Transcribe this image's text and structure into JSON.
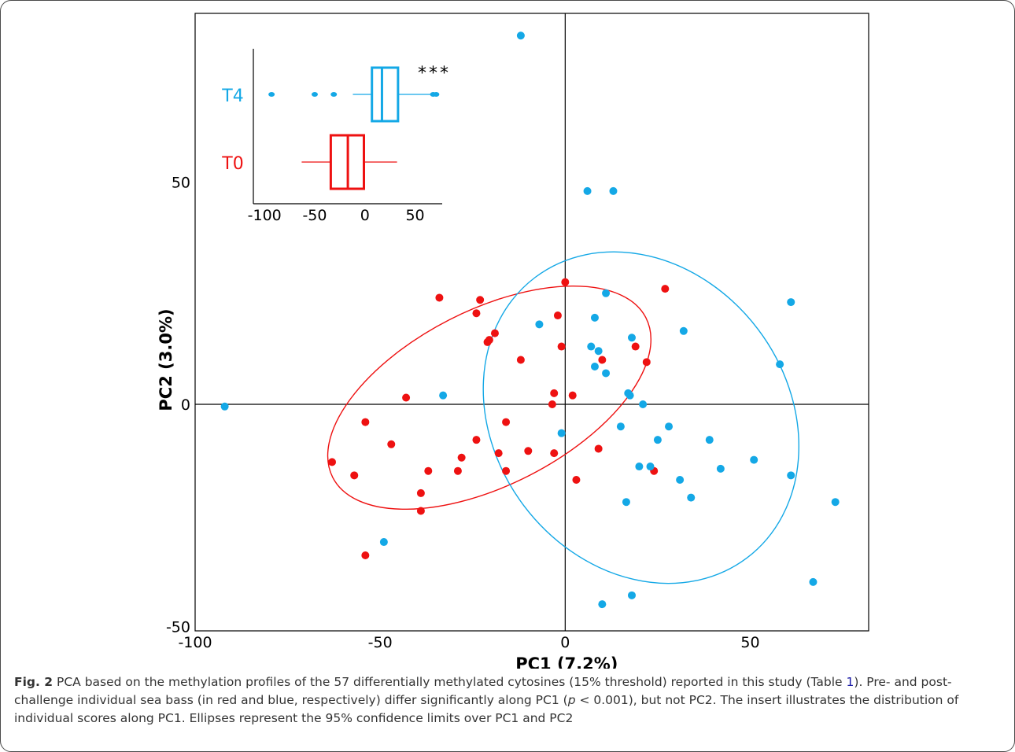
{
  "chart_data": [
    {
      "type": "scatter",
      "xlabel": "PC1 (7.2%)",
      "ylabel": "PC2 (3.0%)",
      "xlim": [
        -100,
        82
      ],
      "ylim": [
        -51,
        88
      ],
      "xticks": [
        "-100",
        "-50",
        "0",
        "50"
      ],
      "xtick_values": [
        -100,
        -50,
        0,
        50
      ],
      "yticks": [
        "50",
        "0",
        "-50"
      ],
      "ytick_values": [
        50,
        0,
        -50
      ],
      "series": [
        {
          "name": "T0",
          "color": "#ee1111",
          "points": [
            [
              -63,
              -13
            ],
            [
              -57,
              -16
            ],
            [
              -54,
              -4
            ],
            [
              -54,
              -34
            ],
            [
              -47,
              -9
            ],
            [
              -43,
              1.5
            ],
            [
              -39,
              -20
            ],
            [
              -39,
              -24
            ],
            [
              -37,
              -15
            ],
            [
              -34,
              24
            ],
            [
              -29,
              -15
            ],
            [
              -28,
              -12
            ],
            [
              -24,
              -8
            ],
            [
              -24,
              20.5
            ],
            [
              -23,
              23.5
            ],
            [
              -21,
              14
            ],
            [
              -20.5,
              14.5
            ],
            [
              -19,
              16
            ],
            [
              -18,
              -11
            ],
            [
              -16,
              -15
            ],
            [
              -16,
              -4
            ],
            [
              -12,
              10
            ],
            [
              -10,
              -10.5
            ],
            [
              -3,
              -11
            ],
            [
              -3,
              2.5
            ],
            [
              -3.5,
              0
            ],
            [
              -2,
              20
            ],
            [
              -1,
              13
            ],
            [
              0,
              27.5
            ],
            [
              2,
              2
            ],
            [
              3,
              -17
            ],
            [
              9,
              -10
            ],
            [
              10,
              10
            ],
            [
              19,
              13
            ],
            [
              22,
              9.5
            ],
            [
              24,
              -15
            ],
            [
              27,
              26
            ]
          ]
        },
        {
          "name": "T4",
          "color": "#14a8e6",
          "points": [
            [
              -92,
              -0.5
            ],
            [
              -49,
              -31
            ],
            [
              -33,
              2
            ],
            [
              -12,
              83
            ],
            [
              -7,
              18
            ],
            [
              -1,
              -6.5
            ],
            [
              6,
              48
            ],
            [
              7,
              13
            ],
            [
              8,
              19.5
            ],
            [
              8,
              8.5
            ],
            [
              9,
              12
            ],
            [
              10,
              -45
            ],
            [
              11,
              7
            ],
            [
              11,
              25
            ],
            [
              13,
              48
            ],
            [
              15,
              -5
            ],
            [
              16.5,
              -22
            ],
            [
              17,
              2.5
            ],
            [
              17.5,
              2
            ],
            [
              18,
              15
            ],
            [
              18,
              -43
            ],
            [
              20,
              -14
            ],
            [
              21,
              0
            ],
            [
              23,
              -14
            ],
            [
              25,
              -8
            ],
            [
              28,
              -5
            ],
            [
              31,
              -17
            ],
            [
              32,
              16.5
            ],
            [
              34,
              -21
            ],
            [
              39,
              -8
            ],
            [
              42,
              -14.5
            ],
            [
              51,
              -12.5
            ],
            [
              58,
              9
            ],
            [
              61,
              23
            ],
            [
              61,
              -16
            ],
            [
              67,
              -40
            ],
            [
              73,
              -22
            ]
          ]
        }
      ],
      "ellipses": [
        {
          "series": "T0",
          "center": [
            -20.5,
            1.5
          ],
          "rx": 47.5,
          "ry": 21.5,
          "angle_deg": -27
        },
        {
          "series": "T4",
          "center": [
            20.5,
            -3
          ],
          "rx": 47.5,
          "ry": 36,
          "angle_deg": 53
        }
      ],
      "grid": false,
      "reference_lines": {
        "x": 0,
        "y": 0
      }
    },
    {
      "type": "box",
      "xticks": [
        "-100",
        "-50",
        "0",
        "50"
      ],
      "xtick_values": [
        -100,
        -50,
        0,
        50
      ],
      "xlim": [
        -108,
        77
      ],
      "categories": [
        "T4",
        "T0"
      ],
      "annotation": "***",
      "boxes": [
        {
          "name": "T4",
          "color": "#14a8e6",
          "whisker_low": -12,
          "q1": 7,
          "median": 17,
          "q3": 33,
          "whisker_high": 68,
          "outliers": [
            -93,
            -50,
            -31,
            68,
            71
          ]
        },
        {
          "name": "T0",
          "color": "#ee1111",
          "whisker_low": -63,
          "q1": -34,
          "median": -17,
          "q3": -1,
          "whisker_high": 32,
          "outliers": []
        }
      ]
    }
  ],
  "caption": {
    "label": "Fig. 2",
    "text_1": " PCA based on the methylation profiles of the 57 differentially methylated cytosines (15% threshold) reported in this study (Table ",
    "table_ref": "1",
    "text_2": "). Pre- and post-challenge individual sea bass (in red and blue, respectively) differ significantly along PC1 (",
    "p_var": "p",
    "text_3": " < 0.001), but not PC2. The insert illustrates the distribution of individual scores along PC1. Ellipses represent the 95% confidence limits over PC1 and PC2"
  }
}
